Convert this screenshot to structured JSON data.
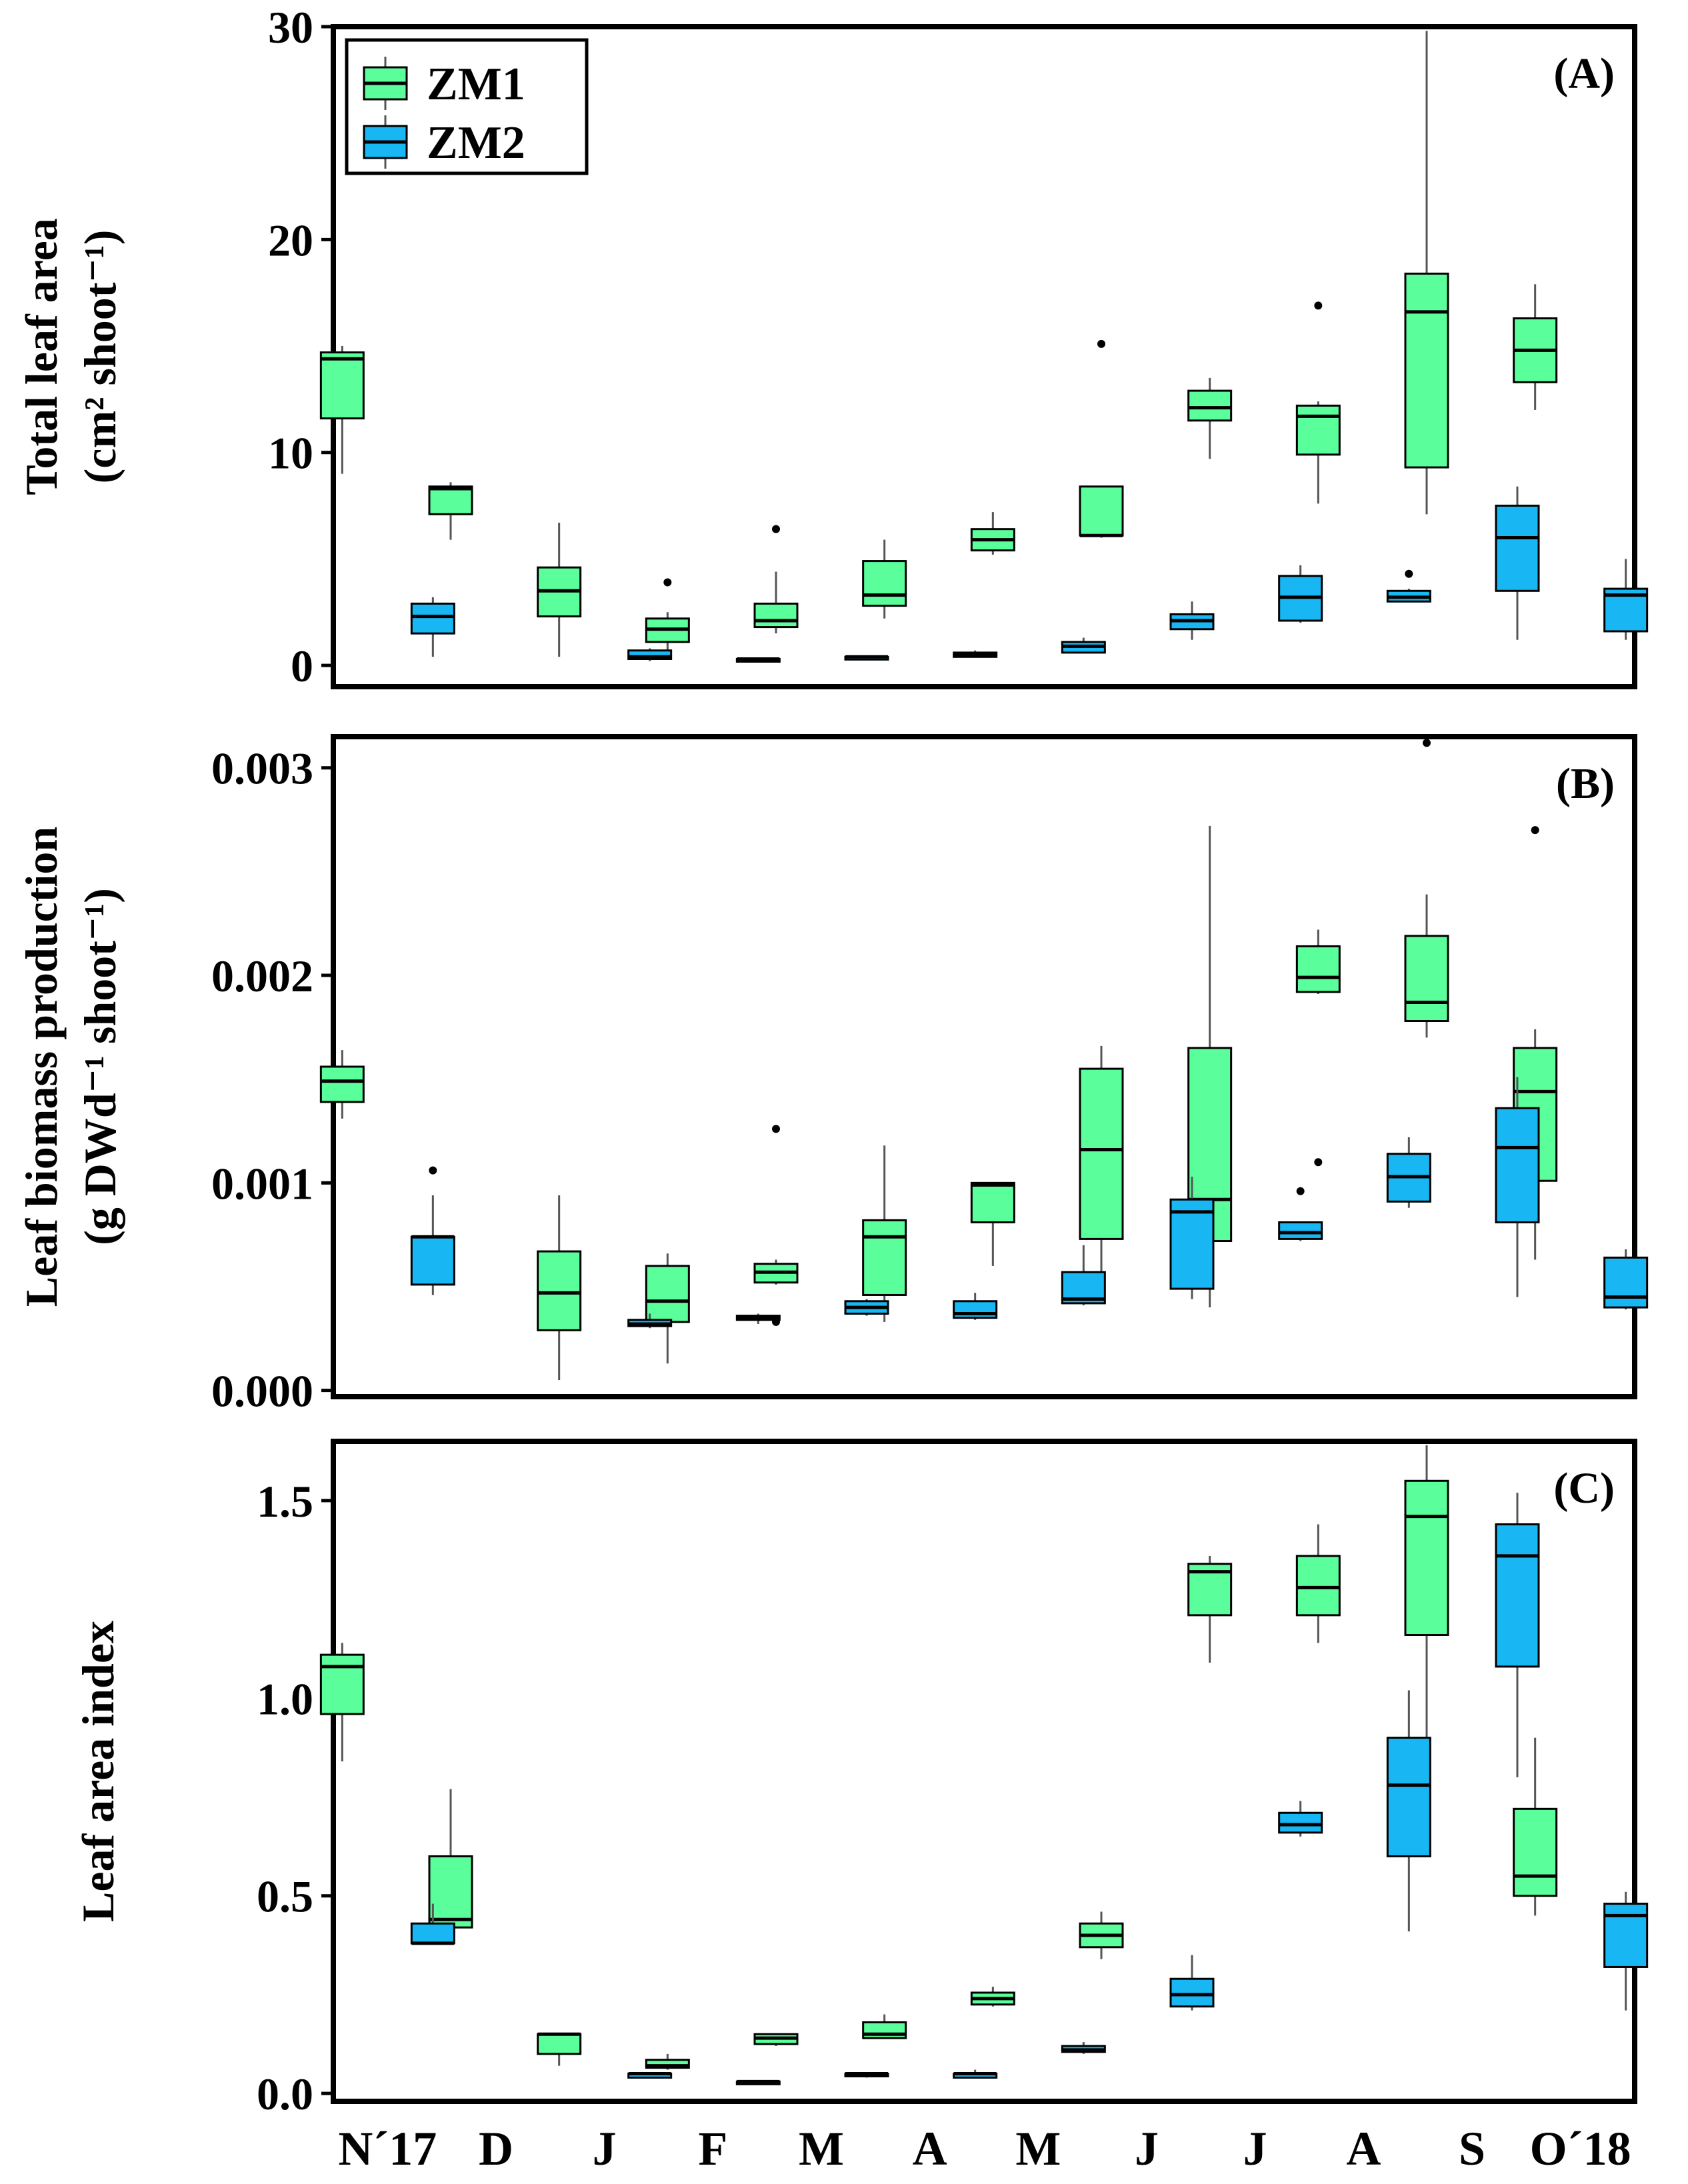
{
  "colors": {
    "ZM1": "#5afe9b",
    "ZM2": "#18b7f3",
    "stroke": "#000000",
    "whisker": "#555555"
  },
  "x_categories": [
    "N´17",
    "D",
    "J",
    "F",
    "M",
    "A",
    "M",
    "J",
    "J",
    "A",
    "S",
    "O´18"
  ],
  "legend": [
    {
      "name": "ZM1",
      "color": "#5afe9b"
    },
    {
      "name": "ZM2",
      "color": "#18b7f3"
    }
  ],
  "chart_data": [
    {
      "type": "box",
      "tag": "(A)",
      "ylabel_line1": "Total leaf area",
      "ylabel_line2": "(cm² shoot⁻¹)",
      "ylim": [
        -1,
        30
      ],
      "yticks": [
        0,
        10,
        20,
        30
      ],
      "ytick_labels": [
        "0",
        "10",
        "20",
        "30"
      ],
      "series": [
        {
          "name": "ZM1",
          "boxes": [
            {
              "min": 9.0,
              "q1": 11.6,
              "median": 14.4,
              "q3": 14.7,
              "max": 15.0,
              "outliers": []
            },
            {
              "min": 5.9,
              "q1": 7.1,
              "median": 8.3,
              "q3": 8.4,
              "max": 8.6,
              "outliers": []
            },
            {
              "min": 0.4,
              "q1": 2.3,
              "median": 3.5,
              "q3": 4.6,
              "max": 6.7,
              "outliers": []
            },
            {
              "min": 0.4,
              "q1": 1.1,
              "median": 1.7,
              "q3": 2.2,
              "max": 2.5,
              "outliers": [
                3.9
              ]
            },
            {
              "min": 1.5,
              "q1": 1.8,
              "median": 2.1,
              "q3": 2.9,
              "max": 4.4,
              "outliers": [
                6.4
              ]
            },
            {
              "min": 2.2,
              "q1": 2.8,
              "median": 3.3,
              "q3": 4.9,
              "max": 5.9,
              "outliers": []
            },
            {
              "min": 5.2,
              "q1": 5.4,
              "median": 5.9,
              "q3": 6.4,
              "max": 7.2,
              "outliers": []
            },
            {
              "min": 6.0,
              "q1": 6.1,
              "median": 6.1,
              "q3": 8.4,
              "max": 8.4,
              "outliers": [
                15.1
              ]
            },
            {
              "min": 9.7,
              "q1": 11.5,
              "median": 12.1,
              "q3": 12.9,
              "max": 13.5,
              "outliers": []
            },
            {
              "min": 7.6,
              "q1": 9.9,
              "median": 11.7,
              "q3": 12.2,
              "max": 12.4,
              "outliers": [
                16.9
              ]
            },
            {
              "min": 7.1,
              "q1": 9.3,
              "median": 16.6,
              "q3": 18.4,
              "max": 29.8,
              "outliers": []
            },
            {
              "min": 12.0,
              "q1": 13.3,
              "median": 14.8,
              "q3": 16.3,
              "max": 17.9,
              "outliers": []
            }
          ]
        },
        {
          "name": "ZM2",
          "boxes": [
            {
              "min": 0.4,
              "q1": 1.5,
              "median": 2.3,
              "q3": 2.9,
              "max": 3.2,
              "outliers": []
            },
            null,
            {
              "min": 0.2,
              "q1": 0.3,
              "median": 0.4,
              "q3": 0.7,
              "max": 0.8,
              "outliers": []
            },
            {
              "min": 0.2,
              "q1": 0.3,
              "median": 0.3,
              "q3": 0.3,
              "max": 0.3,
              "outliers": []
            },
            {
              "min": 0.4,
              "q1": 0.4,
              "median": 0.4,
              "q3": 0.4,
              "max": 0.4,
              "outliers": []
            },
            {
              "min": 0.4,
              "q1": 0.4,
              "median": 0.5,
              "q3": 0.6,
              "max": 0.7,
              "outliers": []
            },
            {
              "min": 0.6,
              "q1": 0.6,
              "median": 0.9,
              "q3": 1.1,
              "max": 1.3,
              "outliers": []
            },
            {
              "min": 1.2,
              "q1": 1.7,
              "median": 2.1,
              "q3": 2.4,
              "max": 3.0,
              "outliers": []
            },
            {
              "min": 2.0,
              "q1": 2.1,
              "median": 3.2,
              "q3": 4.2,
              "max": 4.7,
              "outliers": []
            },
            {
              "min": 3.0,
              "q1": 3.0,
              "median": 3.2,
              "q3": 3.5,
              "max": 3.6,
              "outliers": [
                4.3
              ]
            },
            {
              "min": 1.2,
              "q1": 3.5,
              "median": 6.0,
              "q3": 7.5,
              "max": 8.4,
              "outliers": []
            },
            {
              "min": 1.2,
              "q1": 1.6,
              "median": 3.3,
              "q3": 3.6,
              "max": 5.0,
              "outliers": []
            }
          ]
        }
      ]
    },
    {
      "type": "box",
      "tag": "(B)",
      "ylabel_line1": "Leaf biomass production",
      "ylabel_line2": "(g DWd⁻¹ shoot⁻¹)",
      "ylim": [
        -3e-05,
        0.00315
      ],
      "yticks": [
        0,
        0.001,
        0.002,
        0.003
      ],
      "ytick_labels": [
        "0.000",
        "0.001",
        "0.002",
        "0.003"
      ],
      "series": [
        {
          "name": "ZM1",
          "boxes": [
            {
              "min": 0.00131,
              "q1": 0.00139,
              "median": 0.00149,
              "q3": 0.00156,
              "max": 0.00164,
              "outliers": []
            },
            null,
            {
              "min": 5e-05,
              "q1": 0.00029,
              "median": 0.00047,
              "q3": 0.00067,
              "max": 0.00094,
              "outliers": []
            },
            {
              "min": 0.00013,
              "q1": 0.00033,
              "median": 0.00043,
              "q3": 0.0006,
              "max": 0.00066,
              "outliers": []
            },
            {
              "min": 0.00051,
              "q1": 0.00052,
              "median": 0.00057,
              "q3": 0.00061,
              "max": 0.00063,
              "outliers": [
                0.00126,
                0.00033
              ]
            },
            {
              "min": 0.00033,
              "q1": 0.00046,
              "median": 0.00074,
              "q3": 0.00082,
              "max": 0.00118,
              "outliers": []
            },
            {
              "min": 0.0006,
              "q1": 0.00081,
              "median": 0.00099,
              "q3": 0.001,
              "max": 0.001,
              "outliers": []
            },
            {
              "min": 0.00052,
              "q1": 0.00073,
              "median": 0.00116,
              "q3": 0.00155,
              "max": 0.00166,
              "outliers": []
            },
            {
              "min": 0.0004,
              "q1": 0.00072,
              "median": 0.00092,
              "q3": 0.00165,
              "max": 0.00272,
              "outliers": []
            },
            {
              "min": 0.00191,
              "q1": 0.00192,
              "median": 0.00199,
              "q3": 0.00214,
              "max": 0.00222,
              "outliers": [
                0.0011
              ]
            },
            {
              "min": 0.0017,
              "q1": 0.00178,
              "median": 0.00187,
              "q3": 0.00219,
              "max": 0.00239,
              "outliers": [
                0.00312
              ]
            },
            {
              "min": 0.00063,
              "q1": 0.00101,
              "median": 0.00144,
              "q3": 0.00165,
              "max": 0.00174,
              "outliers": [
                0.0027
              ]
            }
          ]
        },
        {
          "name": "ZM2",
          "boxes": [
            {
              "min": 0.00046,
              "q1": 0.00051,
              "median": 0.00074,
              "q3": 0.00074,
              "max": 0.00094,
              "outliers": [
                0.00106
              ]
            },
            null,
            {
              "min": 0.0003,
              "q1": 0.00031,
              "median": 0.00032,
              "q3": 0.00034,
              "max": 0.00037,
              "outliers": []
            },
            {
              "min": 0.00032,
              "q1": 0.00034,
              "median": 0.00035,
              "q3": 0.00036,
              "max": 0.00037,
              "outliers": []
            },
            {
              "min": 0.00036,
              "q1": 0.00037,
              "median": 0.0004,
              "q3": 0.00043,
              "max": 0.00044,
              "outliers": []
            },
            {
              "min": 0.00034,
              "q1": 0.00035,
              "median": 0.00037,
              "q3": 0.00043,
              "max": 0.00047,
              "outliers": []
            },
            {
              "min": 0.00041,
              "q1": 0.00042,
              "median": 0.00044,
              "q3": 0.00057,
              "max": 0.0007,
              "outliers": []
            },
            {
              "min": 0.00044,
              "q1": 0.00049,
              "median": 0.00086,
              "q3": 0.00092,
              "max": 0.00103,
              "outliers": []
            },
            {
              "min": 0.00072,
              "q1": 0.00073,
              "median": 0.00076,
              "q3": 0.00081,
              "max": 0.00081,
              "outliers": [
                0.00096
              ]
            },
            {
              "min": 0.00088,
              "q1": 0.00091,
              "median": 0.00103,
              "q3": 0.00114,
              "max": 0.00122,
              "outliers": []
            },
            {
              "min": 0.00045,
              "q1": 0.00081,
              "median": 0.00117,
              "q3": 0.00136,
              "max": 0.00151,
              "outliers": []
            },
            {
              "min": 0.00039,
              "q1": 0.0004,
              "median": 0.00045,
              "q3": 0.00064,
              "max": 0.00068,
              "outliers": []
            }
          ]
        }
      ]
    },
    {
      "type": "box",
      "tag": "(C)",
      "ylabel_line1": "Leaf area index",
      "ylabel_line2": "",
      "ylim": [
        -0.02,
        1.65
      ],
      "yticks": [
        0,
        0.5,
        1.0,
        1.5
      ],
      "ytick_labels": [
        "0.0",
        "0.5",
        "1.0",
        "1.5"
      ],
      "series": [
        {
          "name": "ZM1",
          "boxes": [
            {
              "min": 0.84,
              "q1": 0.96,
              "median": 1.08,
              "q3": 1.11,
              "max": 1.14,
              "outliers": []
            },
            {
              "min": 0.4,
              "q1": 0.42,
              "median": 0.44,
              "q3": 0.6,
              "max": 0.77,
              "outliers": []
            },
            {
              "min": 0.07,
              "q1": 0.1,
              "median": 0.15,
              "q3": 0.15,
              "max": 0.15,
              "outliers": []
            },
            {
              "min": 0.06,
              "q1": 0.065,
              "median": 0.07,
              "q3": 0.085,
              "max": 0.1,
              "outliers": []
            },
            {
              "min": 0.12,
              "q1": 0.125,
              "median": 0.14,
              "q3": 0.15,
              "max": 0.15,
              "outliers": []
            },
            {
              "min": 0.14,
              "q1": 0.14,
              "median": 0.15,
              "q3": 0.18,
              "max": 0.2,
              "outliers": []
            },
            {
              "min": 0.22,
              "q1": 0.225,
              "median": 0.24,
              "q3": 0.255,
              "max": 0.27,
              "outliers": []
            },
            {
              "min": 0.34,
              "q1": 0.37,
              "median": 0.4,
              "q3": 0.43,
              "max": 0.46,
              "outliers": []
            },
            {
              "min": 1.09,
              "q1": 1.21,
              "median": 1.32,
              "q3": 1.34,
              "max": 1.36,
              "outliers": []
            },
            {
              "min": 1.14,
              "q1": 1.21,
              "median": 1.28,
              "q3": 1.36,
              "max": 1.44,
              "outliers": []
            },
            {
              "min": 0.86,
              "q1": 1.16,
              "median": 1.46,
              "q3": 1.55,
              "max": 1.64,
              "outliers": []
            },
            {
              "min": 0.45,
              "q1": 0.5,
              "median": 0.55,
              "q3": 0.72,
              "max": 0.9,
              "outliers": []
            }
          ]
        },
        {
          "name": "ZM2",
          "boxes": [
            {
              "min": 0.38,
              "q1": 0.38,
              "median": 0.38,
              "q3": 0.43,
              "max": 0.48,
              "outliers": []
            },
            null,
            {
              "min": 0.04,
              "q1": 0.04,
              "median": 0.05,
              "q3": 0.05,
              "max": 0.05,
              "outliers": []
            },
            {
              "min": 0.03,
              "q1": 0.03,
              "median": 0.03,
              "q3": 0.03,
              "max": 0.03,
              "outliers": []
            },
            {
              "min": 0.04,
              "q1": 0.045,
              "median": 0.05,
              "q3": 0.05,
              "max": 0.05,
              "outliers": []
            },
            {
              "min": 0.04,
              "q1": 0.04,
              "median": 0.05,
              "q3": 0.05,
              "max": 0.06,
              "outliers": []
            },
            {
              "min": 0.1,
              "q1": 0.105,
              "median": 0.11,
              "q3": 0.12,
              "max": 0.13,
              "outliers": []
            },
            {
              "min": 0.21,
              "q1": 0.22,
              "median": 0.25,
              "q3": 0.29,
              "max": 0.35,
              "outliers": []
            },
            {
              "min": 0.65,
              "q1": 0.66,
              "median": 0.68,
              "q3": 0.71,
              "max": 0.74,
              "outliers": []
            },
            {
              "min": 0.41,
              "q1": 0.6,
              "median": 0.78,
              "q3": 0.9,
              "max": 1.02,
              "outliers": []
            },
            {
              "min": 0.8,
              "q1": 1.08,
              "median": 1.36,
              "q3": 1.44,
              "max": 1.52,
              "outliers": []
            },
            {
              "min": 0.21,
              "q1": 0.32,
              "median": 0.45,
              "q3": 0.48,
              "max": 0.51,
              "outliers": []
            }
          ]
        }
      ]
    }
  ]
}
